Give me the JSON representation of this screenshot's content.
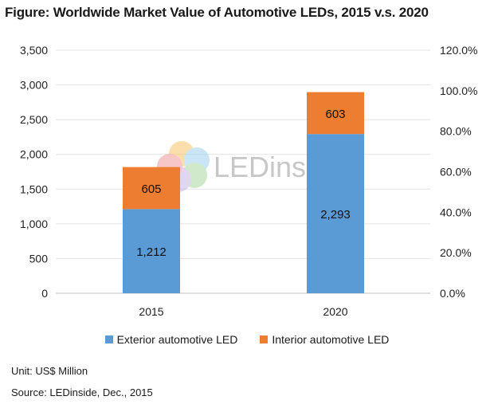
{
  "chart_data": {
    "type": "bar",
    "stacked": true,
    "title": "Figure: Worldwide Market Value of Automotive LEDs, 2015 v.s. 2020",
    "categories": [
      "2015",
      "2020"
    ],
    "series": [
      {
        "name": "Exterior automotive LED",
        "values": [
          1212,
          2293
        ],
        "labels": [
          "1,212",
          "2,293"
        ],
        "color": "#5B9BD5"
      },
      {
        "name": "Interior automotive LED",
        "values": [
          605,
          603
        ],
        "labels": [
          "605",
          "603"
        ],
        "color": "#ED7D31"
      }
    ],
    "ylim": [
      0,
      3500
    ],
    "yticks": [
      "0",
      "500",
      "1,000",
      "1,500",
      "2,000",
      "2,500",
      "3,000",
      "3,500"
    ],
    "y2lim": [
      0,
      120
    ],
    "y2ticks": [
      "0.0%",
      "20.0%",
      "40.0%",
      "60.0%",
      "80.0%",
      "100.0%",
      "120.0%"
    ],
    "gridlines": true,
    "legend_position": "bottom"
  },
  "watermark": "LEDinside",
  "footnotes": {
    "unit": "Unit: US$ Million",
    "source": "Source: LEDinside, Dec., 2015"
  }
}
